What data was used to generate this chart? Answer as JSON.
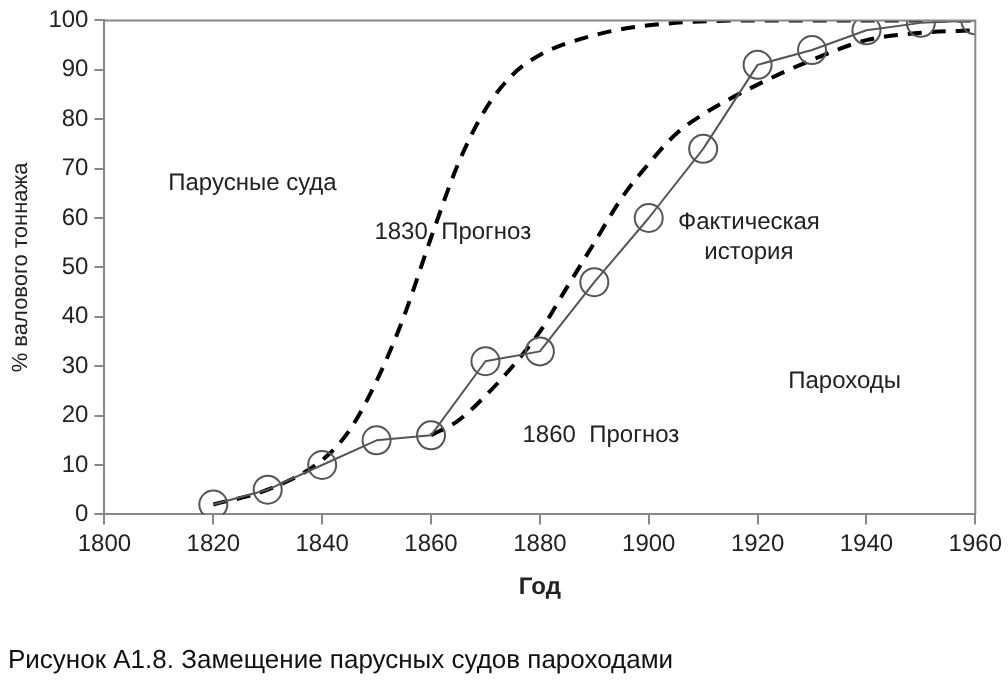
{
  "chart_data": {
    "type": "line",
    "xlabel": "Год",
    "ylabel": "% валового тоннажа",
    "xlim": [
      1800,
      1960
    ],
    "xticks": [
      1800,
      1820,
      1840,
      1860,
      1880,
      1900,
      1920,
      1940,
      1960
    ],
    "ylim": [
      0,
      100
    ],
    "yticks": [
      0,
      10,
      20,
      30,
      40,
      50,
      60,
      70,
      80,
      90,
      100
    ],
    "grid": false,
    "legend": false,
    "series": [
      {
        "color": "#555555",
        "marker": "circle",
        "line_style": "solid",
        "x": [
          1820,
          1830,
          1840,
          1850,
          1860,
          1870,
          1880,
          1890,
          1900,
          1910,
          1920,
          1930,
          1940,
          1950,
          1960
        ],
        "values": [
          2,
          5,
          10,
          15,
          16,
          31,
          33,
          47,
          60,
          74,
          91,
          94,
          98,
          99.5,
          100
        ]
      },
      {
        "color": "#000000",
        "marker": "none",
        "line_style": "dashed",
        "x": [
          1820,
          1830,
          1840,
          1845,
          1850,
          1855,
          1860,
          1865,
          1870,
          1875,
          1880,
          1890,
          1900,
          1920,
          1960
        ],
        "values": [
          2,
          5,
          11,
          17,
          27,
          40,
          56,
          71,
          82,
          89,
          93,
          97,
          99,
          100,
          100
        ]
      },
      {
        "color": "#000000",
        "marker": "none",
        "line_style": "dashed",
        "x": [
          1860,
          1865,
          1870,
          1875,
          1880,
          1885,
          1890,
          1895,
          1900,
          1905,
          1910,
          1920,
          1930,
          1940,
          1950,
          1960
        ],
        "values": [
          16,
          19,
          24,
          30,
          37,
          46,
          55,
          64,
          71,
          77,
          81,
          87,
          92,
          96,
          97.5,
          98
        ]
      }
    ],
    "annotations": [
      "Парусные суда",
      "1830  Прогноз",
      "Фактическая\nистория",
      "Пароходы",
      "1860  Прогноз",
      "Рисунок А1.8. Замещение парусных судов пароходами"
    ]
  }
}
